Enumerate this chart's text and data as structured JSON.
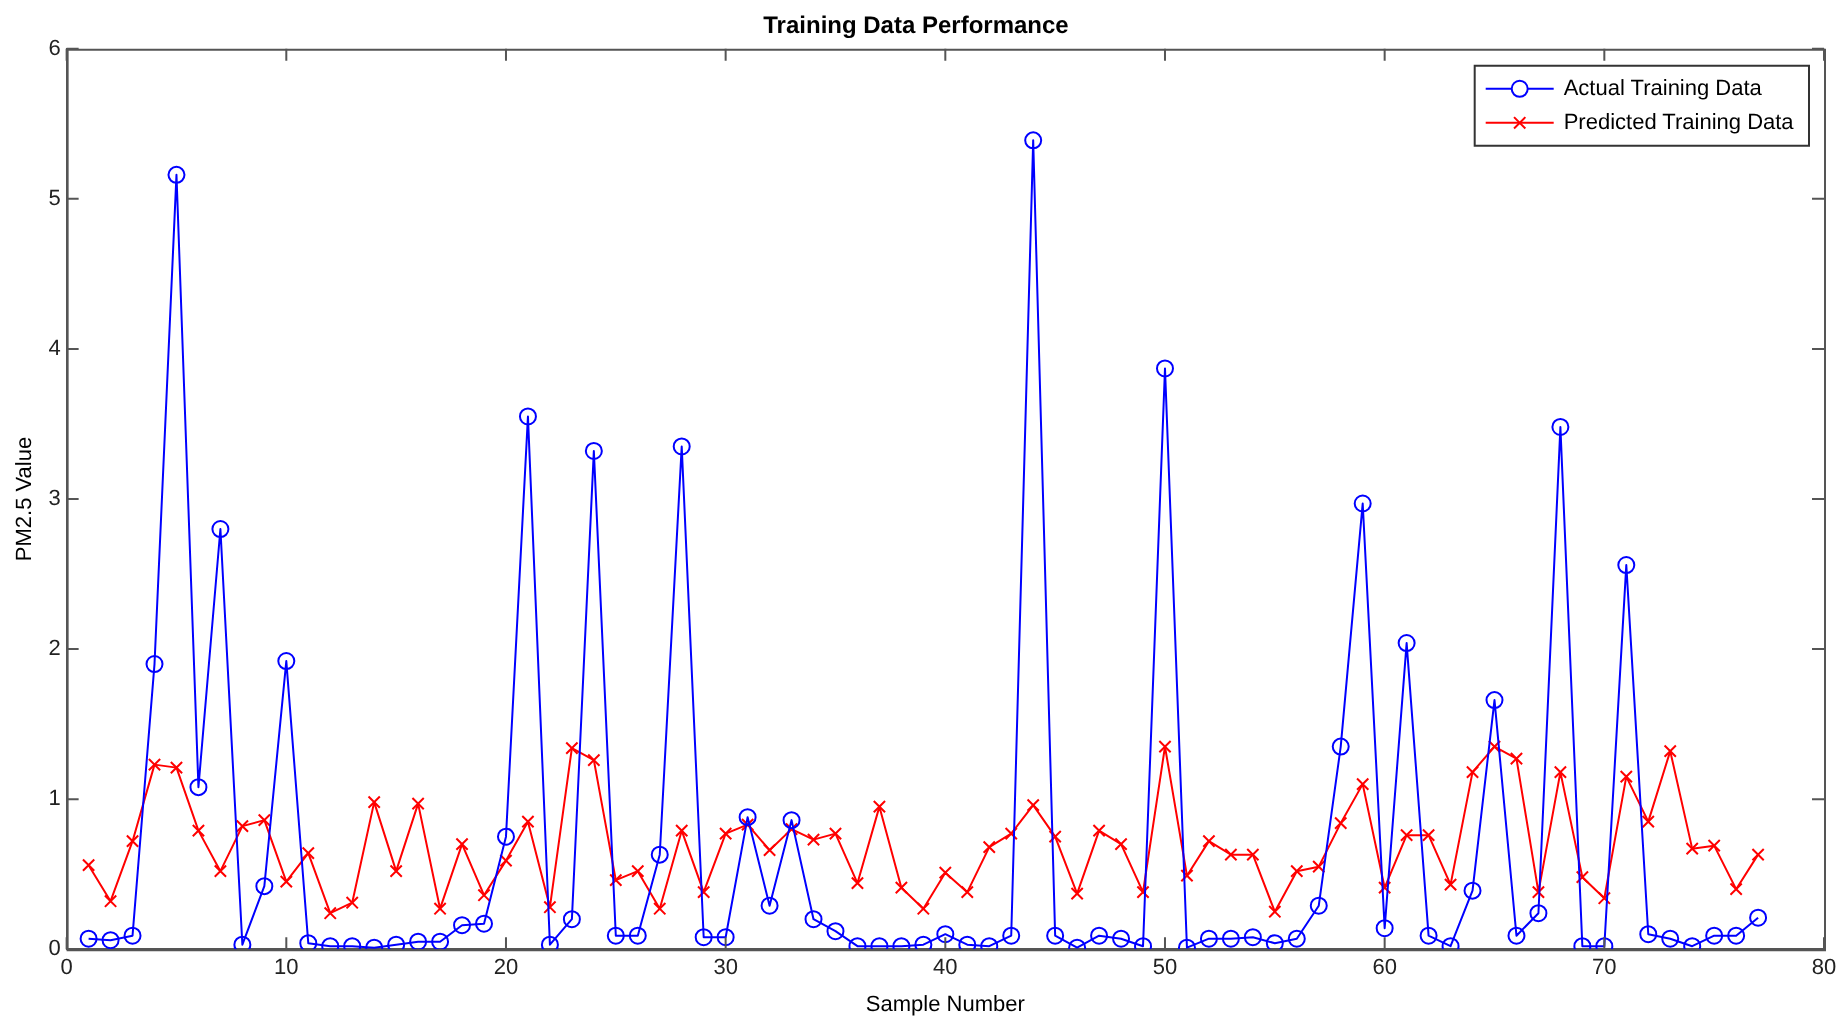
{
  "chart_data": {
    "type": "line",
    "title": "Training Data Performance",
    "xlabel": "Sample Number",
    "ylabel": "PM2.5 Value",
    "x": [
      1,
      2,
      3,
      4,
      5,
      6,
      7,
      8,
      9,
      10,
      11,
      12,
      13,
      14,
      15,
      16,
      17,
      18,
      19,
      20,
      21,
      22,
      23,
      24,
      25,
      26,
      27,
      28,
      29,
      30,
      31,
      32,
      33,
      34,
      35,
      36,
      37,
      38,
      39,
      40,
      41,
      42,
      43,
      44,
      45,
      46,
      47,
      48,
      49,
      50,
      51,
      52,
      53,
      54,
      55,
      56,
      57,
      58,
      59,
      60,
      61,
      62,
      63,
      64,
      65,
      66,
      67,
      68,
      69,
      70,
      71,
      72,
      73,
      74,
      75,
      76,
      77
    ],
    "series": [
      {
        "name": "Actual Training Data",
        "color": "#0000ff",
        "marker": "circle",
        "values": [
          0.07,
          0.06,
          0.09,
          1.9,
          5.16,
          1.08,
          2.8,
          0.03,
          0.42,
          1.92,
          0.04,
          0.02,
          0.02,
          0.01,
          0.03,
          0.05,
          0.05,
          0.16,
          0.17,
          0.75,
          3.55,
          0.03,
          0.2,
          3.32,
          0.09,
          0.09,
          0.63,
          3.35,
          0.08,
          0.08,
          0.88,
          0.29,
          0.86,
          0.2,
          0.12,
          0.02,
          0.02,
          0.02,
          0.03,
          0.1,
          0.03,
          0.02,
          0.09,
          5.39,
          0.09,
          0.01,
          0.09,
          0.07,
          0.02,
          3.87,
          0.01,
          0.07,
          0.07,
          0.08,
          0.04,
          0.07,
          0.29,
          1.35,
          2.97,
          0.14,
          2.04,
          0.09,
          0.02,
          0.39,
          1.66,
          0.09,
          0.24,
          3.48,
          0.02,
          0.02,
          2.56,
          0.1,
          0.07,
          0.02,
          0.09,
          0.09,
          0.21
        ]
      },
      {
        "name": "Predicted Training Data",
        "color": "#ff0000",
        "marker": "cross",
        "values": [
          0.56,
          0.32,
          0.72,
          1.23,
          1.21,
          0.79,
          0.52,
          0.82,
          0.86,
          0.45,
          0.64,
          0.24,
          0.31,
          0.98,
          0.52,
          0.97,
          0.27,
          0.7,
          0.36,
          0.59,
          0.85,
          0.28,
          1.34,
          1.26,
          0.46,
          0.52,
          0.27,
          0.79,
          0.38,
          0.77,
          0.83,
          0.66,
          0.8,
          0.73,
          0.77,
          0.44,
          0.95,
          0.41,
          0.27,
          0.51,
          0.38,
          0.68,
          0.77,
          0.96,
          0.75,
          0.37,
          0.79,
          0.7,
          0.38,
          1.35,
          0.49,
          0.72,
          0.63,
          0.63,
          0.25,
          0.52,
          0.55,
          0.84,
          1.1,
          0.41,
          0.76,
          0.76,
          0.43,
          1.18,
          1.35,
          1.27,
          0.38,
          1.18,
          0.48,
          0.34,
          1.15,
          0.85,
          1.32,
          0.67,
          0.69,
          0.4,
          0.63
        ]
      }
    ],
    "xlim": [
      0,
      80
    ],
    "xticks": [
      0,
      10,
      20,
      30,
      40,
      50,
      60,
      70,
      80
    ],
    "ylim": [
      0,
      6
    ],
    "yticks": [
      0,
      1,
      2,
      3,
      4,
      5,
      6
    ],
    "grid": false,
    "legend": "top right",
    "line_style": "solid"
  }
}
